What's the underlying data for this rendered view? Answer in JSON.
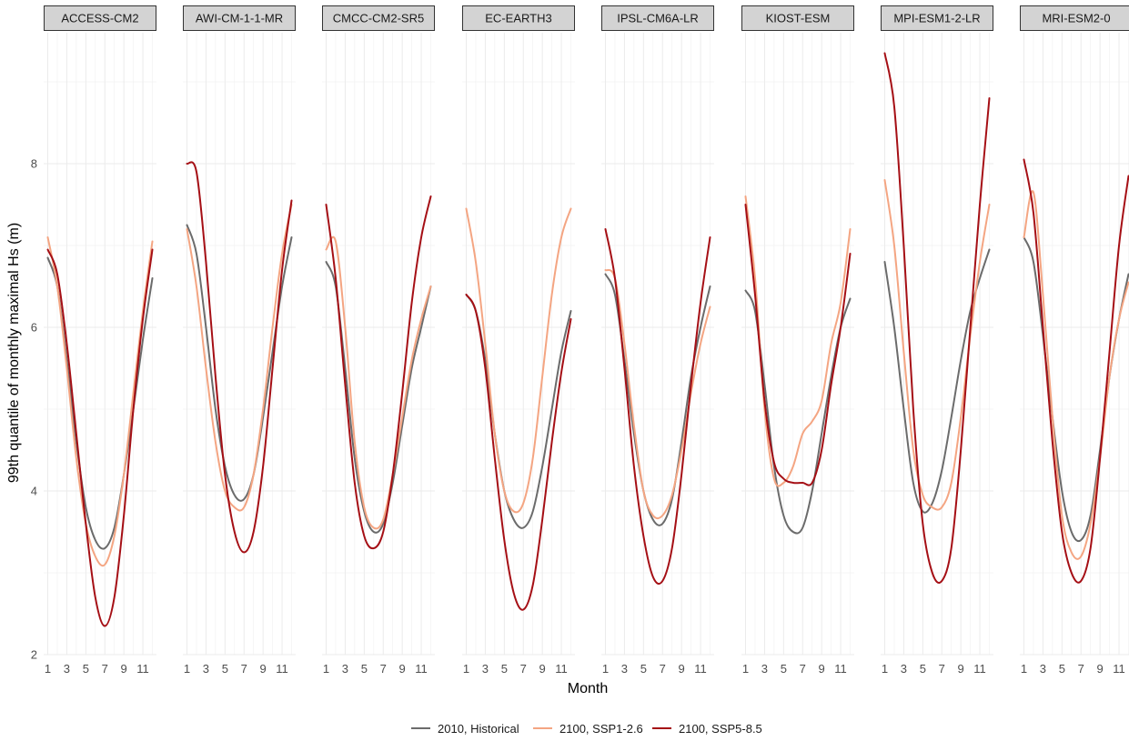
{
  "chart_data": {
    "type": "line",
    "title": "",
    "xlabel": "Month",
    "ylabel": "99th quantile of monthly maximal Hs (m)",
    "ylim": [
      2,
      9.6
    ],
    "xlim": [
      1,
      12
    ],
    "y_ticks": [
      2,
      4,
      6,
      8
    ],
    "x_ticks": [
      1,
      3,
      5,
      7,
      9,
      11
    ],
    "grid": true,
    "legend_position": "bottom",
    "series_styles": [
      {
        "name": "2010, Historical",
        "color": "#6b6b6b"
      },
      {
        "name": "2100, SSP1-2.6",
        "color": "#f4a582"
      },
      {
        "name": "2100, SSP5-8.5",
        "color": "#a50f15"
      }
    ],
    "panels": [
      {
        "title": "ACCESS-CM2",
        "series": [
          {
            "name": "2010, Historical",
            "x": [
              1,
              2,
              3,
              4,
              5,
              6,
              7,
              8,
              9,
              10,
              11,
              12
            ],
            "values": [
              6.85,
              6.5,
              5.6,
              4.6,
              3.8,
              3.4,
              3.3,
              3.55,
              4.2,
              5.0,
              5.85,
              6.6
            ]
          },
          {
            "name": "2100, SSP1-2.6",
            "x": [
              1,
              2,
              3,
              4,
              5,
              6,
              7,
              8,
              9,
              10,
              11,
              12
            ],
            "values": [
              7.1,
              6.5,
              5.5,
              4.4,
              3.6,
              3.2,
              3.1,
              3.45,
              4.2,
              5.2,
              6.2,
              7.05
            ]
          },
          {
            "name": "2100, SSP5-8.5",
            "x": [
              1,
              2,
              3,
              4,
              5,
              6,
              7,
              8,
              9,
              10,
              11,
              12
            ],
            "values": [
              6.95,
              6.65,
              5.8,
              4.7,
              3.6,
              2.7,
              2.35,
              2.7,
              3.7,
              5.0,
              6.1,
              6.95
            ]
          }
        ]
      },
      {
        "title": "AWI-CM-1-1-MR",
        "series": [
          {
            "name": "2010, Historical",
            "x": [
              1,
              2,
              3,
              4,
              5,
              6,
              7,
              8,
              9,
              10,
              11,
              12
            ],
            "values": [
              7.25,
              6.9,
              6.0,
              5.0,
              4.3,
              3.95,
              3.9,
              4.2,
              4.9,
              5.7,
              6.5,
              7.1
            ]
          },
          {
            "name": "2100, SSP1-2.6",
            "x": [
              1,
              2,
              3,
              4,
              5,
              6,
              7,
              8,
              9,
              10,
              11,
              12
            ],
            "values": [
              7.2,
              6.5,
              5.5,
              4.6,
              4.0,
              3.8,
              3.8,
              4.2,
              5.0,
              6.0,
              6.9,
              7.5
            ]
          },
          {
            "name": "2100, SSP5-8.5",
            "x": [
              1,
              2,
              3,
              4,
              5,
              6,
              7,
              8,
              9,
              10,
              11,
              12
            ],
            "values": [
              8.0,
              7.9,
              6.8,
              5.4,
              4.2,
              3.5,
              3.25,
              3.5,
              4.3,
              5.5,
              6.7,
              7.55
            ]
          }
        ]
      },
      {
        "title": "CMCC-CM2-SR5",
        "series": [
          {
            "name": "2010, Historical",
            "x": [
              1,
              2,
              3,
              4,
              5,
              6,
              7,
              8,
              9,
              10,
              11,
              12
            ],
            "values": [
              6.8,
              6.5,
              5.5,
              4.4,
              3.75,
              3.5,
              3.6,
              4.1,
              4.8,
              5.5,
              6.0,
              6.5
            ]
          },
          {
            "name": "2100, SSP1-2.6",
            "x": [
              1,
              2,
              3,
              4,
              5,
              6,
              7,
              8,
              9,
              10,
              11,
              12
            ],
            "values": [
              6.95,
              7.05,
              6.0,
              4.6,
              3.8,
              3.55,
              3.65,
              4.2,
              4.9,
              5.6,
              6.1,
              6.5
            ]
          },
          {
            "name": "2100, SSP5-8.5",
            "x": [
              1,
              2,
              3,
              4,
              5,
              6,
              7,
              8,
              9,
              10,
              11,
              12
            ],
            "values": [
              7.5,
              6.6,
              5.3,
              4.1,
              3.45,
              3.3,
              3.5,
              4.2,
              5.2,
              6.3,
              7.1,
              7.6
            ]
          }
        ]
      },
      {
        "title": "EC-EARTH3",
        "series": [
          {
            "name": "2010, Historical",
            "x": [
              1,
              2,
              3,
              4,
              5,
              6,
              7,
              8,
              9,
              10,
              11,
              12
            ],
            "values": [
              6.4,
              6.2,
              5.6,
              4.7,
              4.0,
              3.65,
              3.55,
              3.75,
              4.3,
              5.0,
              5.7,
              6.2
            ]
          },
          {
            "name": "2100, SSP1-2.6",
            "x": [
              1,
              2,
              3,
              4,
              5,
              6,
              7,
              8,
              9,
              10,
              11,
              12
            ],
            "values": [
              7.45,
              6.8,
              5.8,
              4.7,
              4.0,
              3.75,
              3.85,
              4.4,
              5.4,
              6.4,
              7.1,
              7.45
            ]
          },
          {
            "name": "2100, SSP5-8.5",
            "x": [
              1,
              2,
              3,
              4,
              5,
              6,
              7,
              8,
              9,
              10,
              11,
              12
            ],
            "values": [
              6.4,
              6.2,
              5.5,
              4.4,
              3.4,
              2.75,
              2.55,
              2.85,
              3.65,
              4.6,
              5.45,
              6.1
            ]
          }
        ]
      },
      {
        "title": "IPSL-CM6A-LR",
        "series": [
          {
            "name": "2010, Historical",
            "x": [
              1,
              2,
              3,
              4,
              5,
              6,
              7,
              8,
              9,
              10,
              11,
              12
            ],
            "values": [
              6.65,
              6.4,
              5.6,
              4.7,
              4.0,
              3.65,
              3.6,
              3.9,
              4.6,
              5.4,
              6.0,
              6.5
            ]
          },
          {
            "name": "2100, SSP1-2.6",
            "x": [
              1,
              2,
              3,
              4,
              5,
              6,
              7,
              8,
              9,
              10,
              11,
              12
            ],
            "values": [
              6.7,
              6.6,
              5.8,
              4.8,
              4.0,
              3.7,
              3.7,
              3.95,
              4.5,
              5.2,
              5.8,
              6.25
            ]
          },
          {
            "name": "2100, SSP5-8.5",
            "x": [
              1,
              2,
              3,
              4,
              5,
              6,
              7,
              8,
              9,
              10,
              11,
              12
            ],
            "values": [
              7.2,
              6.6,
              5.5,
              4.3,
              3.45,
              2.95,
              2.9,
              3.3,
              4.2,
              5.3,
              6.3,
              7.1
            ]
          }
        ]
      },
      {
        "title": "KIOST-ESM",
        "series": [
          {
            "name": "2010, Historical",
            "x": [
              1,
              2,
              3,
              4,
              5,
              6,
              7,
              8,
              9,
              10,
              11,
              12
            ],
            "values": [
              6.45,
              6.2,
              5.3,
              4.3,
              3.7,
              3.5,
              3.55,
              4.0,
              4.7,
              5.4,
              6.0,
              6.35
            ]
          },
          {
            "name": "2100, SSP1-2.6",
            "x": [
              1,
              2,
              3,
              4,
              5,
              6,
              7,
              8,
              9,
              10,
              11,
              12
            ],
            "values": [
              7.6,
              6.6,
              5.0,
              4.15,
              4.1,
              4.3,
              4.7,
              4.85,
              5.1,
              5.8,
              6.3,
              7.2
            ]
          },
          {
            "name": "2100, SSP5-8.5",
            "x": [
              1,
              2,
              3,
              4,
              5,
              6,
              7,
              8,
              9,
              10,
              11,
              12
            ],
            "values": [
              7.5,
              6.4,
              5.1,
              4.35,
              4.15,
              4.1,
              4.1,
              4.1,
              4.5,
              5.3,
              6.0,
              6.9
            ]
          }
        ]
      },
      {
        "title": "MPI-ESM1-2-LR",
        "series": [
          {
            "name": "2010, Historical",
            "x": [
              1,
              2,
              3,
              4,
              5,
              6,
              7,
              8,
              9,
              10,
              11,
              12
            ],
            "values": [
              6.8,
              6.0,
              5.0,
              4.1,
              3.75,
              3.85,
              4.25,
              4.9,
              5.6,
              6.2,
              6.6,
              6.95
            ]
          },
          {
            "name": "2100, SSP1-2.6",
            "x": [
              1,
              2,
              3,
              4,
              5,
              6,
              7,
              8,
              9,
              10,
              11,
              12
            ],
            "values": [
              7.8,
              7.0,
              5.7,
              4.5,
              3.95,
              3.8,
              3.8,
              4.1,
              4.9,
              5.9,
              6.8,
              7.5
            ]
          },
          {
            "name": "2100, SSP5-8.5",
            "x": [
              1,
              2,
              3,
              4,
              5,
              6,
              7,
              8,
              9,
              10,
              11,
              12
            ],
            "values": [
              9.35,
              8.7,
              7.0,
              5.0,
              3.6,
              3.0,
              2.9,
              3.3,
              4.5,
              6.0,
              7.5,
              8.8
            ]
          }
        ]
      },
      {
        "title": "MRI-ESM2-0",
        "series": [
          {
            "name": "2010, Historical",
            "x": [
              1,
              2,
              3,
              4,
              5,
              6,
              7,
              8,
              9,
              10,
              11,
              12
            ],
            "values": [
              7.1,
              6.8,
              5.9,
              4.9,
              4.0,
              3.5,
              3.4,
              3.7,
              4.5,
              5.4,
              6.1,
              6.65
            ]
          },
          {
            "name": "2100, SSP1-2.6",
            "x": [
              1,
              2,
              3,
              4,
              5,
              6,
              7,
              8,
              9,
              10,
              11,
              12
            ],
            "values": [
              7.1,
              7.65,
              6.4,
              4.9,
              3.7,
              3.25,
              3.2,
              3.6,
              4.4,
              5.4,
              6.1,
              6.55
            ]
          },
          {
            "name": "2100, SSP5-8.5",
            "x": [
              1,
              2,
              3,
              4,
              5,
              6,
              7,
              8,
              9,
              10,
              11,
              12
            ],
            "values": [
              8.05,
              7.4,
              6.0,
              4.6,
              3.5,
              3.0,
              2.9,
              3.3,
              4.4,
              5.7,
              7.0,
              7.85
            ]
          }
        ]
      }
    ]
  }
}
